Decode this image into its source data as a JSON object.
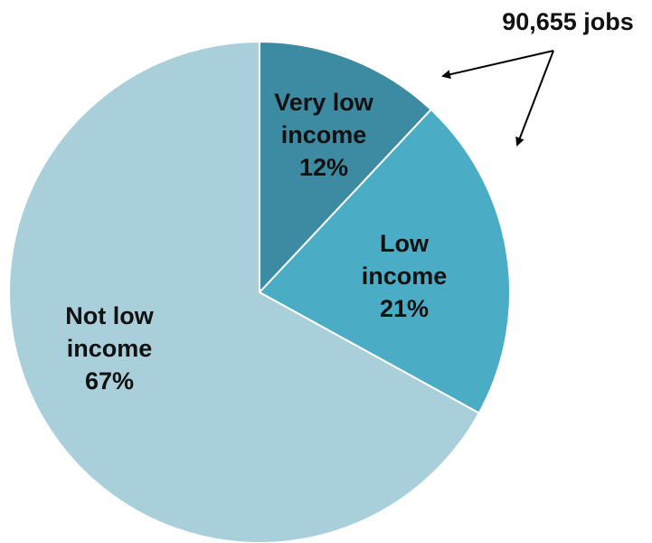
{
  "chart_data": {
    "type": "pie",
    "title": "",
    "slices": [
      {
        "label_lines": [
          "Very low",
          "income",
          "12%"
        ],
        "value": 12,
        "color": "#3d8aa3"
      },
      {
        "label_lines": [
          "Low",
          "income",
          "21%"
        ],
        "value": 21,
        "color": "#4badc5"
      },
      {
        "label_lines": [
          "Not low",
          "income",
          "67%"
        ],
        "value": 67,
        "color": "#a9cfdb"
      }
    ],
    "annotation": {
      "text": "90,655 jobs"
    }
  }
}
